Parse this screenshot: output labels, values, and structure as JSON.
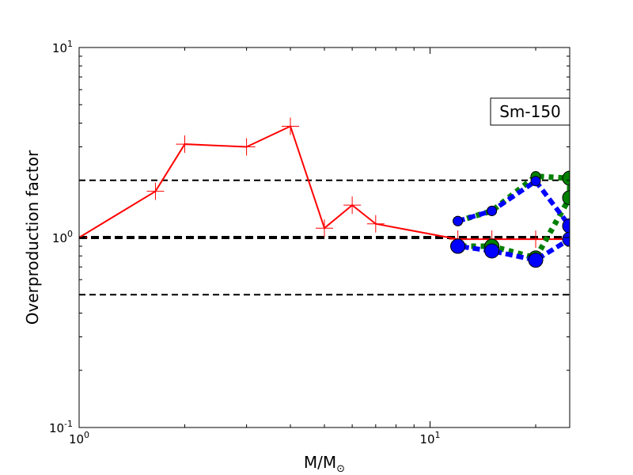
{
  "chart_data": {
    "type": "line",
    "xscale": "log",
    "yscale": "log",
    "xlim": [
      1,
      25
    ],
    "ylim": [
      0.1,
      10
    ],
    "xlabel": "M/M",
    "xlabel_sub": "⊙",
    "ylabel": "Overproduction factor",
    "annotation": "Sm-150",
    "x_ticks": [
      {
        "value": 1,
        "base": "10",
        "exp": "0"
      },
      {
        "value": 10,
        "base": "10",
        "exp": "1"
      }
    ],
    "y_ticks": [
      {
        "value": 0.1,
        "base": "10",
        "exp": "-1"
      },
      {
        "value": 1,
        "base": "10",
        "exp": "0"
      },
      {
        "value": 10,
        "base": "10",
        "exp": "1"
      }
    ],
    "reference_lines": [
      0.5,
      1.0,
      2.0
    ],
    "series": [
      {
        "color": "#ff0000",
        "style": "solid",
        "marker": "plus",
        "x": [
          1.0,
          1.65,
          2.0,
          3.0,
          4.0,
          5.0,
          6.0,
          7.0,
          12.0,
          15.0,
          20.0,
          25.0
        ],
        "y": [
          1.0,
          1.75,
          3.1,
          3.0,
          3.85,
          1.12,
          1.48,
          1.18,
          0.98,
          0.98,
          0.98,
          0.98
        ]
      },
      {
        "color": "#008000",
        "style": "dotted",
        "marker": "circle",
        "x": [
          12.0,
          15.0,
          20.0,
          25.0,
          25.0,
          20.0,
          15.0,
          12.0
        ],
        "y": [
          1.22,
          1.38,
          2.1,
          2.05,
          1.62,
          0.78,
          0.9,
          0.9
        ]
      },
      {
        "color": "#0000ff",
        "style": "dashed",
        "marker": "circle",
        "x": [
          12.0,
          15.0,
          20.0,
          25.0,
          25.0,
          20.0,
          15.0,
          12.0
        ],
        "y": [
          1.22,
          1.38,
          1.98,
          1.15,
          0.98,
          0.76,
          0.85,
          0.9
        ]
      }
    ]
  }
}
